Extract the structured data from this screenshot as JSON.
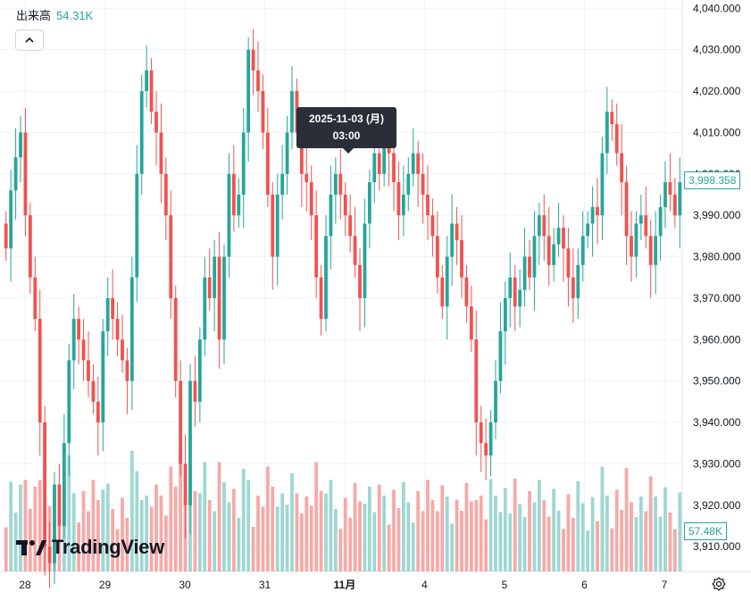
{
  "volume_label": {
    "name": "出来高",
    "value": "54.31K"
  },
  "tooltip": {
    "date": "2025-11-03 (月)",
    "time": "03:00"
  },
  "price_tags": {
    "last_price": "3,998.358",
    "last_volume": "57.48K"
  },
  "branding": {
    "name": "TradingView"
  },
  "icons": {
    "collapse": "chevron-up-icon",
    "settings": "gear-icon",
    "logo": "tradingview-logo-icon"
  },
  "colors": {
    "up": "#26a69a",
    "down": "#ef5350",
    "up_volume": "#9fd7d2",
    "down_volume": "#f7a9a7"
  },
  "chart_data": {
    "type": "candlestick",
    "y_axis": {
      "range": [
        3904,
        4042
      ],
      "ticks": [
        "3,910.000",
        "3,920.000",
        "3,930.000",
        "3,940.000",
        "3,950.000",
        "3,960.000",
        "3,970.000",
        "3,980.000",
        "3,990.000",
        "4,000.000",
        "4,010.000",
        "4,020.000",
        "4,030.000",
        "4,040.000"
      ]
    },
    "x_axis": {
      "labels": [
        "28",
        "29",
        "30",
        "31",
        "11月",
        "4",
        "5",
        "6",
        "7"
      ]
    },
    "grid": true,
    "last_price": 3998.358,
    "candles": [
      [
        3988,
        3982
      ],
      [
        3982,
        3996
      ],
      [
        3996,
        4004
      ],
      [
        4004,
        4010
      ],
      [
        4010,
        3990
      ],
      [
        3990,
        3975
      ],
      [
        3975,
        3965
      ],
      [
        3965,
        3940
      ],
      [
        3940,
        3910
      ],
      [
        3910,
        3906
      ],
      [
        3906,
        3925
      ],
      [
        3925,
        3915
      ],
      [
        3915,
        3935
      ],
      [
        3935,
        3955
      ],
      [
        3955,
        3965
      ],
      [
        3965,
        3960
      ],
      [
        3960,
        3955
      ],
      [
        3955,
        3950
      ],
      [
        3950,
        3945
      ],
      [
        3945,
        3940
      ],
      [
        3940,
        3962
      ],
      [
        3962,
        3970
      ],
      [
        3970,
        3965
      ],
      [
        3965,
        3960
      ],
      [
        3960,
        3955
      ],
      [
        3955,
        3950
      ],
      [
        3950,
        3975
      ],
      [
        3975,
        4000
      ],
      [
        4000,
        4020
      ],
      [
        4020,
        4025
      ],
      [
        4025,
        4015
      ],
      [
        4015,
        4010
      ],
      [
        4010,
        4000
      ],
      [
        4000,
        3990
      ],
      [
        3990,
        3970
      ],
      [
        3970,
        3950
      ],
      [
        3950,
        3930
      ],
      [
        3930,
        3920
      ],
      [
        3920,
        3950
      ],
      [
        3950,
        3945
      ],
      [
        3945,
        3960
      ],
      [
        3960,
        3975
      ],
      [
        3975,
        3970
      ],
      [
        3970,
        3980
      ],
      [
        3980,
        3960
      ],
      [
        3960,
        3980
      ],
      [
        3980,
        4000
      ],
      [
        4000,
        3990
      ],
      [
        3990,
        3995
      ],
      [
        3995,
        4010
      ],
      [
        4010,
        4030
      ],
      [
        4030,
        4025
      ],
      [
        4025,
        4020
      ],
      [
        4020,
        4010
      ],
      [
        4010,
        3995
      ],
      [
        3995,
        3980
      ],
      [
        3980,
        3995
      ],
      [
        3995,
        4000
      ],
      [
        4000,
        4010
      ],
      [
        4010,
        4020
      ],
      [
        4020,
        4010
      ],
      [
        4010,
        4000
      ],
      [
        4000,
        3998
      ],
      [
        3998,
        3990
      ],
      [
        3990,
        3975
      ],
      [
        3975,
        3965
      ],
      [
        3965,
        3985
      ],
      [
        3985,
        3995
      ],
      [
        3995,
        4000
      ],
      [
        4000,
        3995
      ],
      [
        3995,
        3990
      ],
      [
        3990,
        3985
      ],
      [
        3985,
        3978
      ],
      [
        3978,
        3970
      ],
      [
        3970,
        3988
      ],
      [
        3988,
        3998
      ],
      [
        3998,
        4005
      ],
      [
        4005,
        4000
      ],
      [
        4000,
        4010
      ],
      [
        4010,
        4005
      ],
      [
        4005,
        3998
      ],
      [
        3998,
        3990
      ],
      [
        3990,
        3995
      ],
      [
        3995,
        4000
      ],
      [
        4000,
        4005
      ],
      [
        4005,
        4000
      ],
      [
        4000,
        3995
      ],
      [
        3995,
        3990
      ],
      [
        3990,
        3985
      ],
      [
        3985,
        3975
      ],
      [
        3975,
        3968
      ],
      [
        3968,
        3980
      ],
      [
        3980,
        3988
      ],
      [
        3988,
        3984
      ],
      [
        3984,
        3975
      ],
      [
        3975,
        3968
      ],
      [
        3968,
        3960
      ],
      [
        3960,
        3940
      ],
      [
        3940,
        3935
      ],
      [
        3935,
        3932
      ],
      [
        3932,
        3940
      ],
      [
        3940,
        3950
      ],
      [
        3950,
        3962
      ],
      [
        3962,
        3970
      ],
      [
        3970,
        3975
      ],
      [
        3975,
        3968
      ],
      [
        3968,
        3972
      ],
      [
        3972,
        3980
      ],
      [
        3980,
        3975
      ],
      [
        3975,
        3985
      ],
      [
        3985,
        3990
      ],
      [
        3990,
        3985
      ],
      [
        3985,
        3978
      ],
      [
        3978,
        3983
      ],
      [
        3983,
        3987
      ],
      [
        3987,
        3982
      ],
      [
        3982,
        3975
      ],
      [
        3975,
        3970
      ],
      [
        3970,
        3978
      ],
      [
        3978,
        3985
      ],
      [
        3985,
        3988
      ],
      [
        3988,
        3992
      ],
      [
        3992,
        3990
      ],
      [
        3990,
        4005
      ],
      [
        4005,
        4015
      ],
      [
        4015,
        4012
      ],
      [
        4012,
        4005
      ],
      [
        4005,
        3998
      ],
      [
        3998,
        3985
      ],
      [
        3985,
        3980
      ],
      [
        3980,
        3988
      ],
      [
        3988,
        3990
      ],
      [
        3990,
        3985
      ],
      [
        3985,
        3978
      ],
      [
        3978,
        3985
      ],
      [
        3985,
        3992
      ],
      [
        3992,
        3998
      ],
      [
        3998,
        3995
      ],
      [
        3995,
        3990
      ],
      [
        3990,
        3998
      ]
    ],
    "volume_range": [
      0,
      60
    ]
  }
}
